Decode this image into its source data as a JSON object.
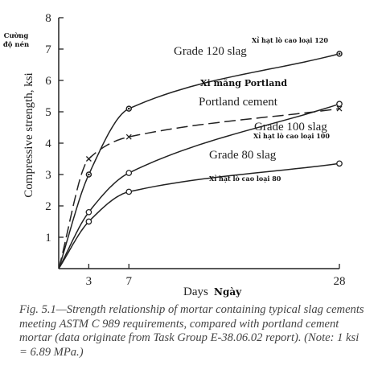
{
  "chart_data": {
    "type": "line",
    "ylabel": "Compressive strength, ksi",
    "ylabel_vi": "Cường độ nén",
    "xlabel": "Days",
    "xlabel_vi": "Ngày",
    "xticks": [
      3,
      7,
      28
    ],
    "yticks": [
      1,
      2,
      3,
      4,
      5,
      6,
      7,
      8
    ],
    "xlim": [
      0,
      28
    ],
    "ylim": [
      0,
      8
    ],
    "grid": false,
    "series": [
      {
        "name": "Grade 120 slag",
        "name_vi": "Xỉ hạt lò cao loại 120",
        "marker": "dot-circle",
        "style": "solid",
        "x": [
          3,
          7,
          28
        ],
        "y": [
          3.0,
          5.1,
          6.85
        ]
      },
      {
        "name": "Portland cement",
        "name_vi": "Xi măng Portland",
        "marker": "x",
        "style": "dashed",
        "x": [
          3,
          7,
          28
        ],
        "y": [
          3.5,
          4.2,
          5.1
        ]
      },
      {
        "name": "Grade 100 slag",
        "name_vi": "Xỉ hạt lò cao loại 100",
        "marker": "circle",
        "style": "solid",
        "x": [
          3,
          7,
          28
        ],
        "y": [
          1.8,
          3.05,
          5.25
        ]
      },
      {
        "name": "Grade 80 slag",
        "name_vi": "Xỉ hạt lò cao loại 80",
        "marker": "circle",
        "style": "solid",
        "x": [
          3,
          7,
          28
        ],
        "y": [
          1.5,
          2.45,
          3.35
        ]
      }
    ]
  },
  "caption": "Fig. 5.1—Strength relationship of mortar containing typical slag cements meeting ASTM C 989 requirements, compared with portland cement mortar (data originate from Task Group E-38.06.02 report). (Note: 1 ksi = 6.89 MPa.)"
}
